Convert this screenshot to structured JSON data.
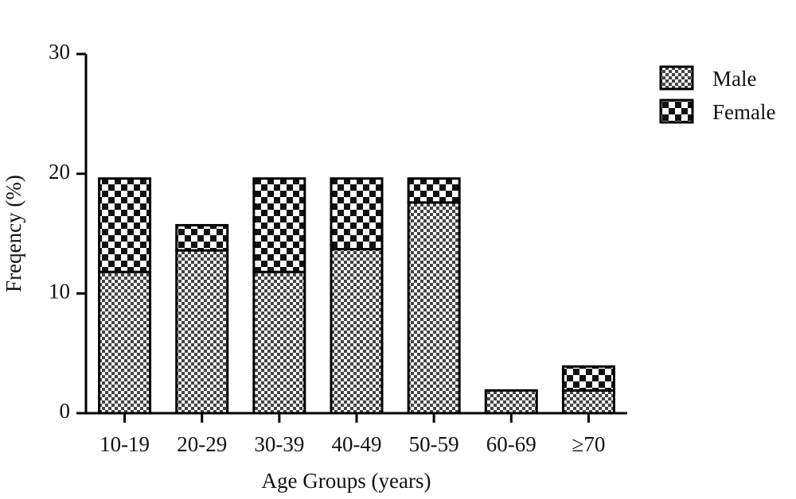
{
  "chart_data": {
    "type": "stacked_bar",
    "categories": [
      "10-19",
      "20-29",
      "30-39",
      "40-49",
      "50-59",
      "60-69",
      "≥70"
    ],
    "series": [
      {
        "name": "Male",
        "color": "#444444",
        "values": [
          11.8,
          13.6,
          11.8,
          13.7,
          17.6,
          1.9,
          1.9
        ]
      },
      {
        "name": "Female",
        "color": "#111111",
        "values": [
          7.8,
          2.1,
          7.8,
          5.9,
          2.0,
          0,
          2.0
        ]
      }
    ],
    "ylim": [
      0,
      30
    ],
    "yticks": [
      0,
      10,
      20,
      30
    ],
    "x_label": "Age Groups (years)",
    "y_label": "Freqency (%)"
  }
}
